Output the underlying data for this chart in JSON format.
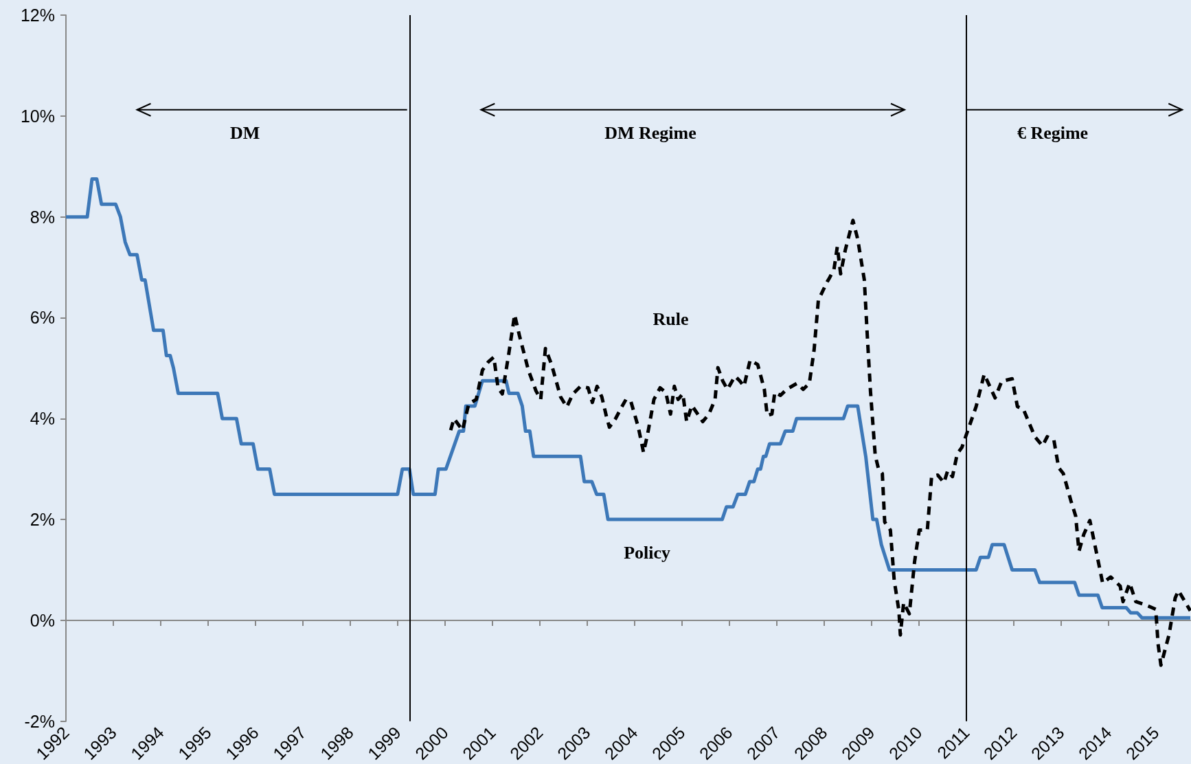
{
  "chart_data": {
    "type": "line",
    "xlim": [
      1992,
      2015.73
    ],
    "ylim": [
      -2,
      12
    ],
    "xticks": [
      1992,
      1993,
      1994,
      1995,
      1996,
      1997,
      1998,
      1999,
      2000,
      2001,
      2002,
      2003,
      2004,
      2005,
      2006,
      2007,
      2008,
      2009,
      2010,
      2011,
      2012,
      2013,
      2014,
      2015
    ],
    "yticks": [
      {
        "value": -2,
        "label": "-2%"
      },
      {
        "value": 0,
        "label": "0%"
      },
      {
        "value": 2,
        "label": "2%"
      },
      {
        "value": 4,
        "label": "4%"
      },
      {
        "value": 6,
        "label": "6%"
      },
      {
        "value": 8,
        "label": "8%"
      },
      {
        "value": 10,
        "label": "10%"
      },
      {
        "value": 12,
        "label": "12%"
      }
    ],
    "grid": false,
    "legend": false,
    "marker": "none",
    "series": [
      {
        "name": "Policy",
        "color": "#3d78b8",
        "line_style": "solid",
        "x": [
          1992,
          1992.45,
          1992.55,
          1992.65,
          1992.75,
          1993.05,
          1993.15,
          1993.25,
          1993.35,
          1993.5,
          1993.6,
          1993.67,
          1993.85,
          1994.05,
          1994.12,
          1994.2,
          1994.27,
          1994.37,
          1995.2,
          1995.3,
          1995.6,
          1995.7,
          1995.95,
          1996.05,
          1996.3,
          1996.4,
          1999,
          1999.1,
          1999.25,
          1999.33,
          1999.79,
          1999.86,
          2000.02,
          2000.3,
          2000.39,
          2000.44,
          2000.63,
          2000.79,
          2001.29,
          2001.35,
          2001.54,
          2001.63,
          2001.7,
          2001.79,
          2001.87,
          2002.86,
          2002.94,
          2003.1,
          2003.2,
          2003.35,
          2003.44,
          2005.85,
          2005.94,
          2006.08,
          2006.18,
          2006.34,
          2006.43,
          2006.52,
          2006.6,
          2006.66,
          2006.72,
          2006.77,
          2006.85,
          2007.08,
          2007.18,
          2007.34,
          2007.42,
          2008.41,
          2008.5,
          2008.71,
          2008.88,
          2009.03,
          2009.11,
          2009.21,
          2009.38,
          2011.21,
          2011.3,
          2011.47,
          2011.55,
          2011.8,
          2011.97,
          2012.45,
          2012.55,
          2013.29,
          2013.38,
          2013.78,
          2013.87,
          2014.38,
          2014.47,
          2014.61,
          2014.71,
          2015.73
        ],
        "values": [
          8,
          8,
          8.75,
          8.75,
          8.25,
          8.25,
          8,
          7.5,
          7.25,
          7.25,
          6.75,
          6.75,
          5.75,
          5.75,
          5.25,
          5.25,
          5,
          4.5,
          4.5,
          4,
          4,
          3.5,
          3.5,
          3,
          3,
          2.5,
          2.5,
          3,
          3,
          2.5,
          2.5,
          3,
          3,
          3.75,
          3.75,
          4.25,
          4.25,
          4.75,
          4.75,
          4.5,
          4.5,
          4.25,
          3.75,
          3.75,
          3.25,
          3.25,
          2.75,
          2.75,
          2.5,
          2.5,
          2,
          2,
          2.25,
          2.25,
          2.5,
          2.5,
          2.75,
          2.75,
          3,
          3,
          3.25,
          3.25,
          3.5,
          3.5,
          3.75,
          3.75,
          4,
          4,
          4.25,
          4.25,
          3.25,
          2,
          2,
          1.5,
          1,
          1,
          1.25,
          1.25,
          1.5,
          1.5,
          1,
          1,
          0.75,
          0.75,
          0.5,
          0.5,
          0.25,
          0.25,
          0.15,
          0.15,
          0.05,
          0.05
        ]
      },
      {
        "name": "Rule",
        "color": "#000000",
        "line_style": "dashed",
        "x": [
          2000.12,
          2000.19,
          2000.37,
          2000.5,
          2000.66,
          2000.79,
          2000.92,
          2001.03,
          2001.12,
          2001.21,
          2001.34,
          2001.47,
          2001.57,
          2001.76,
          2001.92,
          2002.02,
          2002.12,
          2002.25,
          2002.44,
          2002.57,
          2002.7,
          2002.86,
          2003.02,
          2003.11,
          2003.21,
          2003.31,
          2003.41,
          2003.47,
          2003.6,
          2003.73,
          2003.82,
          2003.92,
          2004.08,
          2004.19,
          2004.28,
          2004.41,
          2004.54,
          2004.66,
          2004.76,
          2004.84,
          2004.92,
          2005.02,
          2005.1,
          2005.21,
          2005.44,
          2005.57,
          2005.7,
          2005.76,
          2005.86,
          2005.96,
          2006.12,
          2006.22,
          2006.31,
          2006.44,
          2006.6,
          2006.74,
          2006.8,
          2006.9,
          2006.96,
          2007.08,
          2007.21,
          2007.43,
          2007.56,
          2007.69,
          2007.79,
          2007.88,
          2008.07,
          2008.11,
          2008.21,
          2008.28,
          2008.35,
          2008.45,
          2008.61,
          2008.71,
          2008.85,
          2008.91,
          2008.98,
          2009.08,
          2009.15,
          2009.23,
          2009.28,
          2009.4,
          2009.48,
          2009.58,
          2009.61,
          2009.68,
          2009.8,
          2009.91,
          2010.01,
          2010.18,
          2010.27,
          2010.4,
          2010.53,
          2010.61,
          2010.71,
          2010.81,
          2010.91,
          2011.01,
          2011.21,
          2011.38,
          2011.61,
          2011.75,
          2011.97,
          2012.08,
          2012.21,
          2012.45,
          2012.61,
          2012.71,
          2012.85,
          2012.95,
          2013.05,
          2013.21,
          2013.31,
          2013.38,
          2013.48,
          2013.61,
          2013.88,
          2014.05,
          2014.25,
          2014.31,
          2014.45,
          2014.58,
          2014.78,
          2015,
          2015.05,
          2015.11,
          2015.28,
          2015.41,
          2015.48,
          2015.73
        ],
        "values": [
          3.77,
          4,
          3.77,
          4.29,
          4.38,
          4.96,
          5.13,
          5.22,
          4.61,
          4.49,
          5.25,
          6.06,
          5.65,
          4.96,
          4.55,
          4.38,
          5.39,
          5.07,
          4.43,
          4.23,
          4.49,
          4.64,
          4.61,
          4.32,
          4.64,
          4.43,
          4.03,
          3.83,
          4,
          4.23,
          4.38,
          4.35,
          3.83,
          3.33,
          3.71,
          4.38,
          4.61,
          4.52,
          4.09,
          4.64,
          4.38,
          4.49,
          3.94,
          4.26,
          3.94,
          4.09,
          4.38,
          5.01,
          4.75,
          4.58,
          4.84,
          4.75,
          4.64,
          5.16,
          5.07,
          4.58,
          4.06,
          4.09,
          4.52,
          4.46,
          4.58,
          4.7,
          4.58,
          4.7,
          5.36,
          6.35,
          6.72,
          6.78,
          6.96,
          7.41,
          6.87,
          7.35,
          7.93,
          7.56,
          6.75,
          5.69,
          4.54,
          3.27,
          3,
          2.91,
          1.95,
          1.79,
          0.8,
          0.19,
          -0.29,
          0.35,
          0.13,
          1.16,
          1.79,
          1.79,
          2.85,
          2.88,
          2.73,
          2.97,
          2.85,
          3.3,
          3.43,
          3.7,
          4.24,
          4.88,
          4.41,
          4.74,
          4.79,
          4.24,
          4.18,
          3.64,
          3.46,
          3.64,
          3.58,
          3.03,
          2.91,
          2.37,
          2.07,
          1.37,
          1.7,
          1.98,
          0.74,
          0.86,
          0.68,
          0.37,
          0.74,
          0.37,
          0.31,
          0.22,
          -0.47,
          -0.89,
          -0.29,
          0.44,
          0.59,
          0.19
        ]
      }
    ],
    "ref_lines": [
      {
        "axis": "x",
        "value": 1999.26,
        "color": "#000000"
      },
      {
        "axis": "x",
        "value": 2011.0,
        "color": "#000000"
      }
    ],
    "annotations": [
      "DM",
      "DM Regime",
      "€ Regime"
    ]
  }
}
